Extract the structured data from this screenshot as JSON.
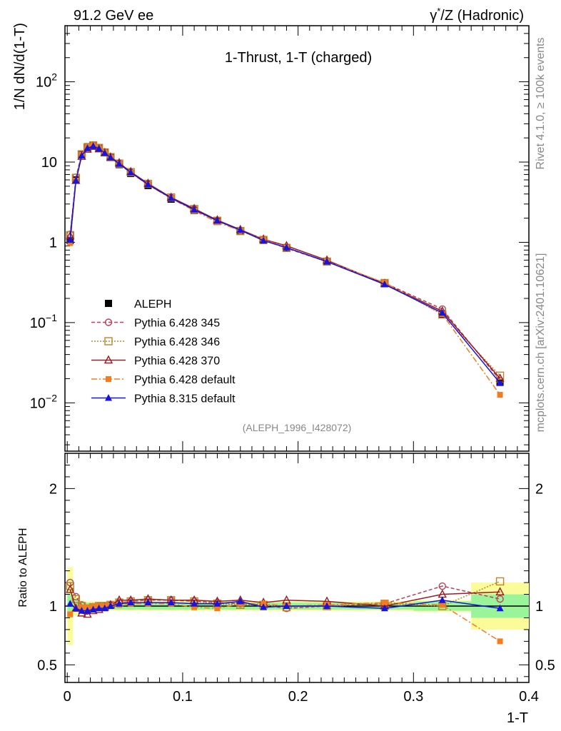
{
  "header": {
    "left": "91.2 GeV ee",
    "right_prefix": "γ",
    "right_sup": "*",
    "right_suffix": "/Z (Hadronic)"
  },
  "side_labels": {
    "rivet": "Rivet 4.1.0, ≥ 100k events",
    "mcplots": "mcplots.cern.ch [arXiv:2401.10621]"
  },
  "analysis_id": "(ALEPH_1996_I428072)",
  "chart_data": {
    "type": "line",
    "title": "1-Thrust, 1-T (charged)",
    "xlabel": "1-T",
    "ylabel": "1/N  dN/d(1-T)",
    "ratio_ylabel": "Ratio to ALEPH",
    "xlim": [
      -0.002,
      0.4
    ],
    "ylim": [
      0.0025,
      500
    ],
    "ratio_ylim": [
      0.35,
      2.3
    ],
    "x_ticks": [
      "0",
      "0.1",
      "0.2",
      "0.3",
      "0.4"
    ],
    "y_ticks": [
      {
        "value": 100,
        "base": "10",
        "exp": "2"
      },
      {
        "value": 10,
        "base": "10",
        "exp": ""
      },
      {
        "value": 1,
        "base": "1",
        "exp": ""
      },
      {
        "value": 0.1,
        "base": "10",
        "exp": "−1"
      },
      {
        "value": 0.01,
        "base": "10",
        "exp": "−2"
      }
    ],
    "ratio_ticks": [
      "0.5",
      "1",
      "2"
    ],
    "x": [
      0.0025,
      0.0075,
      0.0125,
      0.0175,
      0.0225,
      0.0275,
      0.0325,
      0.0375,
      0.045,
      0.055,
      0.07,
      0.09,
      0.11,
      0.13,
      0.15,
      0.17,
      0.19,
      0.225,
      0.275,
      0.325,
      0.375
    ],
    "x_edges": [
      0.0,
      0.005,
      0.01,
      0.015,
      0.02,
      0.025,
      0.03,
      0.035,
      0.04,
      0.05,
      0.06,
      0.08,
      0.1,
      0.12,
      0.14,
      0.16,
      0.18,
      0.2,
      0.25,
      0.3,
      0.35,
      0.4
    ],
    "data": {
      "name": "ALEPH",
      "values": [
        1.05,
        6.0,
        12.5,
        15.5,
        16.3,
        15.0,
        13.2,
        11.4,
        9.3,
        7.2,
        5.1,
        3.45,
        2.5,
        1.82,
        1.37,
        1.06,
        0.86,
        0.575,
        0.305,
        0.126,
        0.018
      ],
      "band_stat": [
        0.1,
        0.05,
        0.03,
        0.03,
        0.03,
        0.03,
        0.03,
        0.03,
        0.03,
        0.03,
        0.03,
        0.03,
        0.03,
        0.03,
        0.03,
        0.03,
        0.03,
        0.03,
        0.03,
        0.04,
        0.1
      ],
      "band_total": [
        0.33,
        0.08,
        0.05,
        0.04,
        0.04,
        0.04,
        0.04,
        0.04,
        0.04,
        0.04,
        0.04,
        0.04,
        0.04,
        0.04,
        0.04,
        0.04,
        0.04,
        0.04,
        0.04,
        0.05,
        0.2
      ]
    },
    "series": [
      {
        "name": "Pythia 6.428 345",
        "color": "#b8425a",
        "marker": "circle-open",
        "dash": "5,3",
        "ratio": [
          1.2,
          1.08,
          1.01,
          0.98,
          0.98,
          1.0,
          1.0,
          1.01,
          1.03,
          1.04,
          1.05,
          1.05,
          1.04,
          1.03,
          1.02,
          1.01,
          0.98,
          1.0,
          1.02,
          1.17,
          1.06
        ]
      },
      {
        "name": "Pythia 6.428 346",
        "color": "#b8862e",
        "marker": "square-open",
        "dash": "2,2",
        "ratio": [
          1.17,
          1.06,
          1.0,
          0.98,
          0.99,
          1.0,
          1.0,
          1.01,
          1.03,
          1.04,
          1.05,
          1.05,
          1.04,
          1.02,
          1.01,
          1.01,
          0.99,
          1.0,
          1.02,
          1.0,
          1.21
        ]
      },
      {
        "name": "Pythia 6.428 370",
        "color": "#9b1c22",
        "marker": "triangle-open",
        "dash": "",
        "ratio": [
          1.14,
          0.98,
          0.94,
          0.93,
          0.96,
          0.97,
          0.99,
          1.01,
          1.05,
          1.05,
          1.06,
          1.05,
          1.05,
          1.04,
          1.05,
          1.03,
          1.05,
          1.04,
          1.0,
          1.1,
          1.12
        ]
      },
      {
        "name": "Pythia 6.428 default",
        "color": "#f47c20",
        "marker": "square-filled",
        "dash": "8,3,2,3",
        "ratio": [
          0.93,
          0.98,
          0.99,
          0.99,
          1.0,
          1.0,
          1.0,
          1.0,
          1.01,
          1.02,
          1.02,
          1.02,
          0.99,
          0.98,
          1.02,
          1.02,
          1.0,
          1.01,
          1.03,
          1.01,
          0.7
        ]
      },
      {
        "name": "Pythia 8.315 default",
        "color": "#1515dd",
        "marker": "triangle-filled",
        "dash": "",
        "ratio": [
          1.02,
          0.98,
          0.96,
          0.96,
          0.97,
          0.98,
          0.98,
          1.0,
          1.02,
          1.03,
          1.03,
          1.03,
          1.02,
          1.02,
          1.04,
          0.99,
          1.0,
          1.0,
          0.98,
          1.05,
          0.98
        ]
      }
    ]
  }
}
